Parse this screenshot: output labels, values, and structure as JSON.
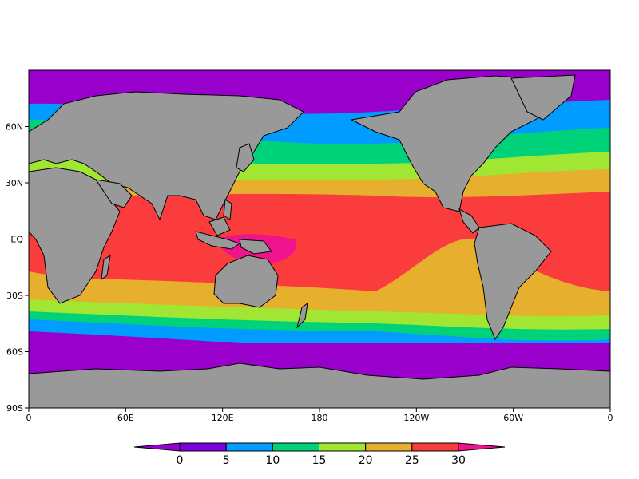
{
  "map": {
    "projection": "cylindrical-equidistant",
    "lon_range": [
      0,
      360
    ],
    "lat_range": [
      -90,
      90
    ],
    "colors": {
      "land": "#999999",
      "coast": "#000000",
      "bands": [
        "#9900cc",
        "#8000dd",
        "#009cff",
        "#00d27a",
        "#a0e632",
        "#e6af2d",
        "#fa3c3c",
        "#f0148c"
      ]
    },
    "x_ticks": [
      {
        "lon": 0,
        "label": "0"
      },
      {
        "lon": 60,
        "label": "60E"
      },
      {
        "lon": 120,
        "label": "120E"
      },
      {
        "lon": 180,
        "label": "180"
      },
      {
        "lon": 240,
        "label": "120W"
      },
      {
        "lon": 300,
        "label": "60W"
      },
      {
        "lon": 360,
        "label": "0"
      }
    ],
    "y_ticks": [
      {
        "lat": 60,
        "label": "60N"
      },
      {
        "lat": 30,
        "label": "30N"
      },
      {
        "lat": 0,
        "label": "EQ"
      },
      {
        "lat": -30,
        "label": "30S"
      },
      {
        "lat": -60,
        "label": "60S"
      },
      {
        "lat": -90,
        "label": "90S"
      }
    ]
  },
  "colorbar": {
    "levels": [
      0,
      5,
      10,
      15,
      20,
      25,
      30
    ],
    "labels": [
      "0",
      "5",
      "10",
      "15",
      "20",
      "25",
      "30"
    ],
    "below_color": "#9900cc",
    "above_color": "#f0148c",
    "band_colors": [
      "#8000dd",
      "#009cff",
      "#00d27a",
      "#a0e632",
      "#e6af2d",
      "#fa3c3c"
    ]
  }
}
